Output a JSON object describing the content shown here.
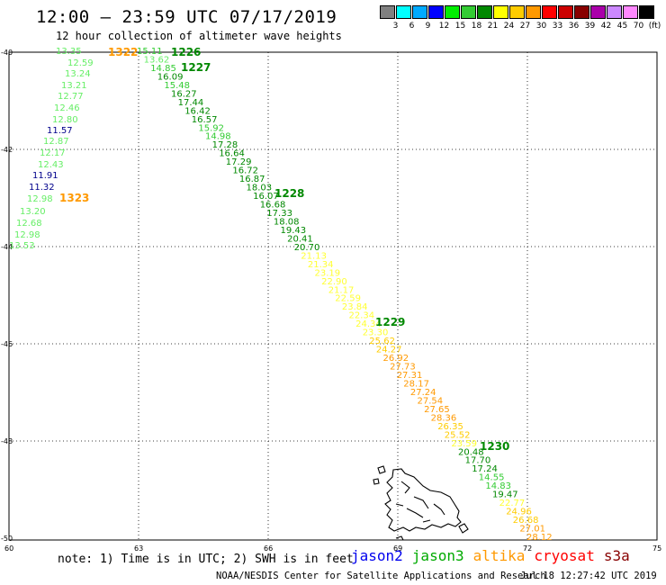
{
  "header": {
    "title": "12:00 — 23:59 UTC 07/17/2019",
    "subtitle": "12 hour collection of altimeter wave heights"
  },
  "scale": {
    "colors": [
      "#808080",
      "#00ffff",
      "#00aaff",
      "#0000ff",
      "#00ee00",
      "#33cc33",
      "#008800",
      "#ffff00",
      "#ffcc00",
      "#ff9900",
      "#ff0000",
      "#cc0000",
      "#880000",
      "#aa00aa",
      "#cc88ff",
      "#ff88ff",
      "#000000"
    ],
    "labels": [
      "3",
      "6",
      "9",
      "12",
      "15",
      "18",
      "21",
      "24",
      "27",
      "30",
      "33",
      "36",
      "39",
      "42",
      "45",
      "70",
      "(ft)"
    ]
  },
  "map": {
    "lat_labels": [
      "-40",
      "-42",
      "-44",
      "-46",
      "-48",
      "-50"
    ],
    "lon_labels": [
      "60",
      "63",
      "66",
      "69",
      "72",
      "75"
    ]
  },
  "colors": {
    "c1": "#66ee66",
    "c2": "#00008b",
    "c3": "#33cc33",
    "c4": "#008800",
    "c5": "#ffff33",
    "c6": "#ffcc00",
    "c7": "#ff9900",
    "c8": "#00cc00"
  },
  "track_labels": [
    {
      "text": "1322",
      "color": "#ff9900"
    },
    {
      "text": "1323",
      "color": "#ff9900"
    },
    {
      "text": "1226",
      "color": "#008800"
    },
    {
      "text": "1227",
      "color": "#008800"
    },
    {
      "text": "1228",
      "color": "#008800"
    },
    {
      "text": "1229",
      "color": "#008800"
    },
    {
      "text": "1230",
      "color": "#008800"
    }
  ],
  "track_a": [
    {
      "v": "13.35",
      "c": "c1"
    },
    {
      "v": "12.59",
      "c": "c1"
    },
    {
      "v": "13.24",
      "c": "c1"
    },
    {
      "v": "13.21",
      "c": "c1"
    },
    {
      "v": "12.77",
      "c": "c1"
    },
    {
      "v": "12.46",
      "c": "c1"
    },
    {
      "v": "12.80",
      "c": "c1"
    },
    {
      "v": "11.57",
      "c": "c2"
    },
    {
      "v": "12.87",
      "c": "c1"
    },
    {
      "v": "12.17",
      "c": "c1"
    },
    {
      "v": "12.43",
      "c": "c1"
    },
    {
      "v": "11.91",
      "c": "c2"
    },
    {
      "v": "11.32",
      "c": "c2"
    },
    {
      "v": "12.98",
      "c": "c1"
    },
    {
      "v": "13.20",
      "c": "c1"
    },
    {
      "v": "12.68",
      "c": "c1"
    },
    {
      "v": "12.98",
      "c": "c1"
    },
    {
      "v": "13.53",
      "c": "c1"
    }
  ],
  "track_b": [
    {
      "v": "15.11",
      "c": "c3"
    },
    {
      "v": "13.62",
      "c": "c1"
    },
    {
      "v": "14.85",
      "c": "c3"
    },
    {
      "v": "16.09",
      "c": "c4"
    },
    {
      "v": "15.48",
      "c": "c3"
    },
    {
      "v": "16.27",
      "c": "c4"
    },
    {
      "v": "17.44",
      "c": "c4"
    },
    {
      "v": "16.42",
      "c": "c4"
    },
    {
      "v": "16.57",
      "c": "c4"
    },
    {
      "v": "15.92",
      "c": "c3"
    },
    {
      "v": "14.98",
      "c": "c3"
    },
    {
      "v": "17.28",
      "c": "c4"
    },
    {
      "v": "16.64",
      "c": "c4"
    },
    {
      "v": "17.29",
      "c": "c4"
    },
    {
      "v": "16.72",
      "c": "c4"
    },
    {
      "v": "16.87",
      "c": "c4"
    },
    {
      "v": "18.03",
      "c": "c4"
    },
    {
      "v": "16.07",
      "c": "c4"
    },
    {
      "v": "16.68",
      "c": "c4"
    },
    {
      "v": "17.33",
      "c": "c4"
    },
    {
      "v": "18.08",
      "c": "c4"
    },
    {
      "v": "19.43",
      "c": "c4"
    },
    {
      "v": "20.41",
      "c": "c4"
    },
    {
      "v": "20.70",
      "c": "c4"
    },
    {
      "v": "21.13",
      "c": "c5"
    },
    {
      "v": "21.34",
      "c": "c5"
    },
    {
      "v": "23.19",
      "c": "c5"
    },
    {
      "v": "22.90",
      "c": "c5"
    },
    {
      "v": "21.17",
      "c": "c5"
    },
    {
      "v": "22.59",
      "c": "c5"
    },
    {
      "v": "23.84",
      "c": "c5"
    },
    {
      "v": "22.34",
      "c": "c5"
    },
    {
      "v": "24.34",
      "c": "c5"
    },
    {
      "v": "23.30",
      "c": "c5"
    },
    {
      "v": "25.62",
      "c": "c6"
    },
    {
      "v": "24.27",
      "c": "c6"
    },
    {
      "v": "26.92",
      "c": "c7"
    },
    {
      "v": "27.73",
      "c": "c7"
    },
    {
      "v": "27.31",
      "c": "c7"
    },
    {
      "v": "28.17",
      "c": "c7"
    },
    {
      "v": "27.24",
      "c": "c7"
    },
    {
      "v": "27.54",
      "c": "c7"
    },
    {
      "v": "27.65",
      "c": "c7"
    },
    {
      "v": "28.36",
      "c": "c7"
    },
    {
      "v": "26.35",
      "c": "c6"
    },
    {
      "v": "25.52",
      "c": "c6"
    },
    {
      "v": "23.59",
      "c": "c5"
    },
    {
      "v": "20.48",
      "c": "c4"
    },
    {
      "v": "17.70",
      "c": "c4"
    },
    {
      "v": "17.24",
      "c": "c4"
    },
    {
      "v": "14.55",
      "c": "c3"
    },
    {
      "v": "14.83",
      "c": "c3"
    },
    {
      "v": "19.47",
      "c": "c4"
    },
    {
      "v": "22.77",
      "c": "c5"
    },
    {
      "v": "24.96",
      "c": "c6"
    },
    {
      "v": "26.68",
      "c": "c6"
    },
    {
      "v": "27.01",
      "c": "c7"
    },
    {
      "v": "28.12",
      "c": "c7"
    }
  ],
  "footer": {
    "note": "note: 1) Time is in UTC; 2) SWH is in feet",
    "sats": [
      {
        "name": "jason2",
        "color": "#0000ee"
      },
      {
        "name": "jason3",
        "color": "#00aa00"
      },
      {
        "name": "altika",
        "color": "#ff9900"
      },
      {
        "name": "cryosat",
        "color": "#ff0000"
      },
      {
        "name": "s3a",
        "color": "#880000"
      }
    ],
    "credit": "NOAA/NESDIS Center for Satellite Applications and Research",
    "timestamp": "Jul 18 12:27:42 UTC 2019"
  }
}
